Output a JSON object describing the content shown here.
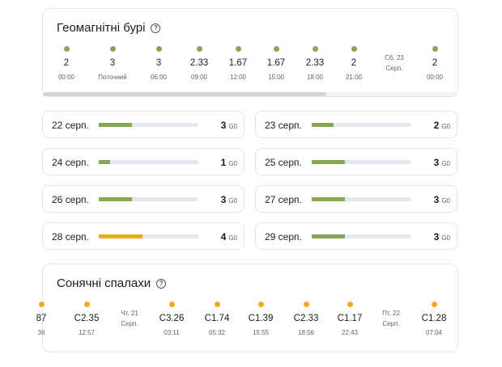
{
  "geomagnetic": {
    "title": "Геомагнітні бурі",
    "help_icon": "question-circle-icon",
    "timeline": [
      {
        "type": "entry",
        "value": "2",
        "time": "00:00"
      },
      {
        "type": "entry",
        "value": "3",
        "time": "Поточний"
      },
      {
        "type": "entry",
        "value": "3",
        "time": "06:00"
      },
      {
        "type": "entry",
        "value": "2.33",
        "time": "09:00"
      },
      {
        "type": "entry",
        "value": "1.67",
        "time": "12:00"
      },
      {
        "type": "entry",
        "value": "1.67",
        "time": "15:00"
      },
      {
        "type": "entry",
        "value": "2.33",
        "time": "18:00"
      },
      {
        "type": "entry",
        "value": "2",
        "time": "21:00"
      },
      {
        "type": "day",
        "line1": "Сб, 23",
        "line2": "Серп."
      },
      {
        "type": "entry",
        "value": "2",
        "time": "00:00"
      }
    ]
  },
  "forecast": [
    {
      "date": "22 серп.",
      "value": "3",
      "unit": "G0",
      "level": 0.33,
      "color": "#86a84f"
    },
    {
      "date": "23 серп.",
      "value": "2",
      "unit": "G0",
      "level": 0.22,
      "color": "#86a84f"
    },
    {
      "date": "24 серп.",
      "value": "1",
      "unit": "G0",
      "level": 0.11,
      "color": "#86a84f"
    },
    {
      "date": "25 серп.",
      "value": "3",
      "unit": "G0",
      "level": 0.33,
      "color": "#86a84f"
    },
    {
      "date": "26 серп.",
      "value": "3",
      "unit": "G0",
      "level": 0.33,
      "color": "#86a84f"
    },
    {
      "date": "27 серп.",
      "value": "3",
      "unit": "G0",
      "level": 0.33,
      "color": "#86a84f"
    },
    {
      "date": "28 серп.",
      "value": "4",
      "unit": "G0",
      "level": 0.44,
      "color": "#f4a81c"
    },
    {
      "date": "29 серп.",
      "value": "3",
      "unit": "G0",
      "level": 0.33,
      "color": "#86a84f"
    }
  ],
  "flares": {
    "title": "Сонячні спалахи",
    "help_icon": "question-circle-icon",
    "timeline": [
      {
        "type": "entry",
        "value": "87",
        "time": "36"
      },
      {
        "type": "entry",
        "value": "C2.35",
        "time": "12:57"
      },
      {
        "type": "day",
        "line1": "Чт, 21",
        "line2": "Серп."
      },
      {
        "type": "entry",
        "value": "C3.26",
        "time": "03:11"
      },
      {
        "type": "entry",
        "value": "C1.74",
        "time": "05:32"
      },
      {
        "type": "entry",
        "value": "C1.39",
        "time": "15:55"
      },
      {
        "type": "entry",
        "value": "C2.33",
        "time": "18:56"
      },
      {
        "type": "entry",
        "value": "C1.17",
        "time": "22:43"
      },
      {
        "type": "day",
        "line1": "Пт, 22",
        "line2": "Серп."
      },
      {
        "type": "entry",
        "value": "C1.28",
        "time": "07:04"
      }
    ]
  },
  "colors": {
    "green": "#86a84f",
    "orange": "#f4a81c",
    "track": "#e4e8ee"
  }
}
